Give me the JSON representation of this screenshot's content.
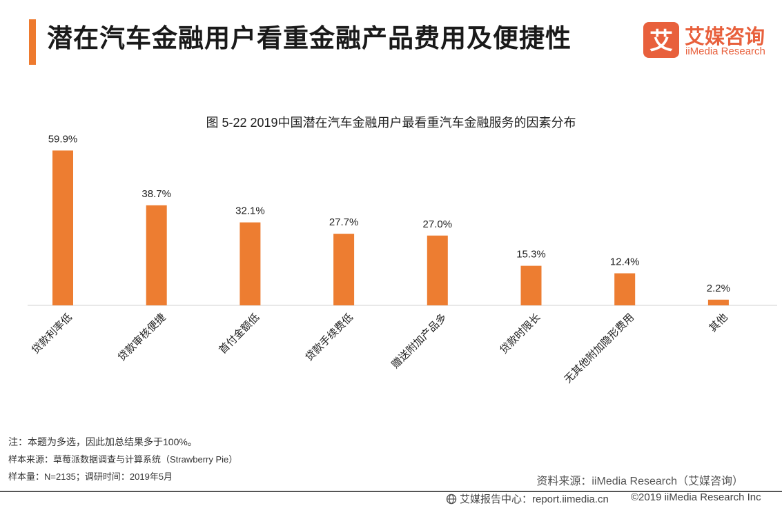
{
  "header": {
    "title": "潜在汽车金融用户看重金融产品费用及便捷性",
    "logo_cn": "艾媒咨询",
    "logo_en": "iiMedia Research",
    "logo_mark_text": "艾",
    "accent_color": "#ee7a2e"
  },
  "chart_data": {
    "type": "bar",
    "title": "图 5-22    2019中国潜在汽车金融用户最看重汽车金融服务的因素分布",
    "categories": [
      "贷款利率低",
      "贷款审核便捷",
      "首付金额低",
      "贷款手续费低",
      "赠送附加产品多",
      "贷款时限长",
      "无其他附加隐形费用",
      "其他"
    ],
    "values": [
      59.9,
      38.7,
      32.1,
      27.7,
      27.0,
      15.3,
      12.4,
      2.2
    ],
    "data_labels": [
      "59.9%",
      "38.7%",
      "32.1%",
      "27.7%",
      "27.0%",
      "15.3%",
      "12.4%",
      "2.2%"
    ],
    "unit": "%",
    "xlabel": "",
    "ylabel": "",
    "ylim": [
      0,
      60
    ],
    "grid": false,
    "legend": "none",
    "bar_color": "#ed7d31"
  },
  "notes": {
    "note1": "注：本题为多选，因此加总结果多于100%。",
    "note2": "样本来源：草莓派数据调查与计算系统（Strawberry Pie）",
    "note3": "样本量：N=2135；调研时间：2019年5月"
  },
  "source": "资料来源：iiMedia Research（艾媒咨询）",
  "footer": {
    "left": "艾媒报告中心：report.iimedia.cn",
    "right": "©2019  iiMedia Research  Inc"
  }
}
